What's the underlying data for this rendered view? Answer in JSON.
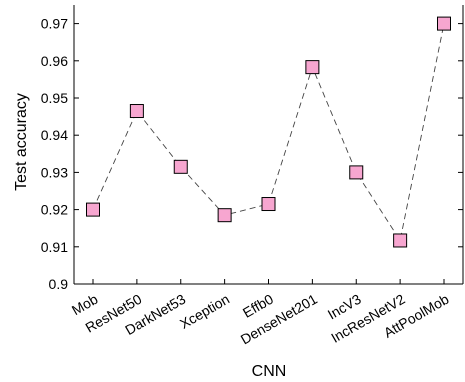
{
  "chart_data": {
    "type": "line",
    "categories": [
      "Mob",
      "ResNet50",
      "DarkNet53",
      "Xception",
      "Effb0",
      "DenseNet201",
      "IncV3",
      "IncResNetV2",
      "AttPoolMob"
    ],
    "values": [
      0.92,
      0.9465,
      0.9315,
      0.9185,
      0.9215,
      0.9583,
      0.93,
      0.9117,
      0.97
    ],
    "xlabel": "CNN",
    "ylabel": "Test accuracy",
    "ylim": [
      0.9,
      0.975
    ],
    "yticks": [
      0.9,
      0.91,
      0.92,
      0.93,
      0.94,
      0.95,
      0.96,
      0.97
    ],
    "ytick_labels": [
      "0.9",
      "0.91",
      "0.92",
      "0.93",
      "0.94",
      "0.95",
      "0.96",
      "0.97"
    ],
    "grid": false,
    "marker": "square",
    "line_style": "dashed",
    "colors": {
      "marker_fill": "#f7a6d0",
      "marker_edge": "#000000",
      "line": "#444444"
    }
  }
}
